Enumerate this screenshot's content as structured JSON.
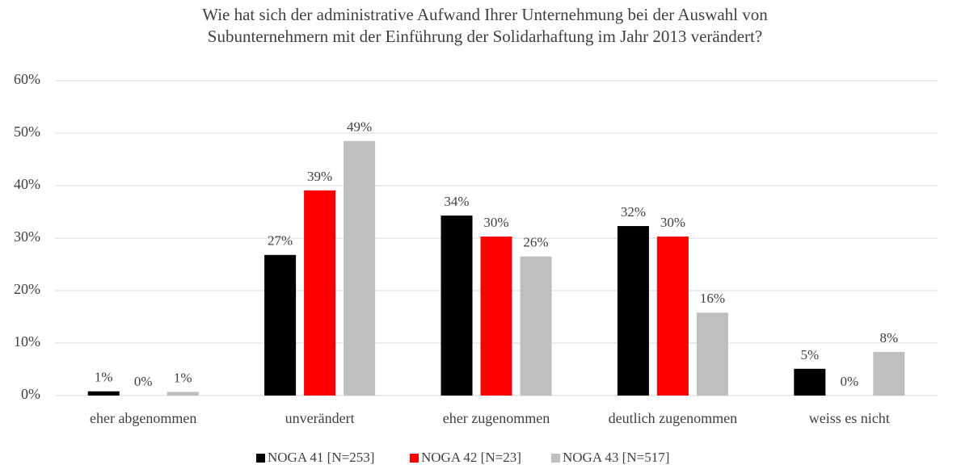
{
  "chart_data": {
    "type": "bar",
    "title": [
      "Wie hat sich der administrative Aufwand Ihrer Unternehmung bei der Auswahl von",
      "Subunternehmern mit der Einführung der Solidarhaftung im Jahr 2013 verändert?"
    ],
    "categories": [
      "eher abgenommen",
      "unverändert",
      "eher zugenommen",
      "deutlich zugenommen",
      "weiss es nicht"
    ],
    "series": [
      {
        "name": "NOGA 41 [N=253]",
        "color": "#000000",
        "values": [
          0.8,
          26.8,
          34.3,
          32.3,
          5.1
        ],
        "value_labels": [
          "1%",
          "27%",
          "34%",
          "32%",
          "5%"
        ]
      },
      {
        "name": "NOGA 42 [N=23]",
        "color": "#ff0000",
        "values": [
          0,
          39.1,
          30.3,
          30.3,
          0
        ],
        "value_labels": [
          "0%",
          "39%",
          "30%",
          "30%",
          "0%"
        ]
      },
      {
        "name": "NOGA 43 [N=517]",
        "color": "#bfbfbf",
        "values": [
          0.7,
          48.5,
          26.5,
          15.8,
          8.3
        ],
        "value_labels": [
          "1%",
          "49%",
          "26%",
          "16%",
          "8%"
        ]
      }
    ],
    "ylim": [
      0,
      60
    ],
    "yticks": [
      {
        "value": 0,
        "label": "0%"
      },
      {
        "value": 10,
        "label": "10%"
      },
      {
        "value": 20,
        "label": "20%"
      },
      {
        "value": 30,
        "label": "30%"
      },
      {
        "value": 40,
        "label": "40%"
      },
      {
        "value": 50,
        "label": "50%"
      },
      {
        "value": 60,
        "label": "60%"
      }
    ],
    "grid": true,
    "legend": "bottom"
  }
}
